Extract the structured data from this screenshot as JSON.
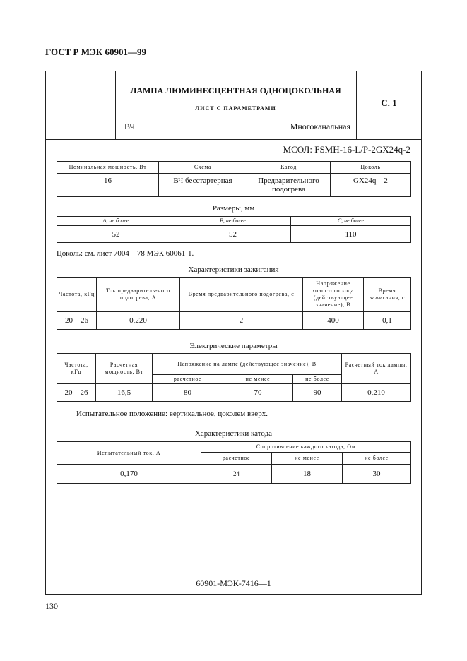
{
  "running_header": "ГОСТ Р МЭК 60901—99",
  "title_block": {
    "title": "ЛАМПА ЛЮМИНЕСЦЕНТНАЯ ОДНОЦОКОЛЬНАЯ",
    "subtitle": "ЛИСТ С ПАРАМЕТРАМИ",
    "left_label": "ВЧ",
    "right_label": "Многоканальная",
    "sheet": "С. 1"
  },
  "designation": "МСОЛ: FSMH-16-L/P-2GX24q-2",
  "general": {
    "headers": [
      "Номинальная мощность, Вт",
      "Схема",
      "Катод",
      "Цоколь"
    ],
    "row": [
      "16",
      "ВЧ бесстартерная",
      "Предварительного подогрева",
      "GX24q—2"
    ]
  },
  "dimensions": {
    "caption": "Размеры, мм",
    "headers": [
      "A, не более",
      "B, не более",
      "C, не более"
    ],
    "row": [
      "52",
      "52",
      "110"
    ]
  },
  "base_note": "Цоколь: см. лист 7004—78 МЭК 60061-1.",
  "ignition": {
    "caption": "Характеристики зажигания",
    "headers": [
      "Частота, кГц",
      "Ток предваритель-ного подогрева, А",
      "Время предварительного подогрева, с",
      "Напряжение холостого хода (действующее значение), В",
      "Время зажигания, с"
    ],
    "row": [
      "20—26",
      "0,220",
      "2",
      "400",
      "0,1"
    ]
  },
  "electrical": {
    "caption": "Электрические параметры",
    "headers": [
      "Частота, кГц",
      "Расчетная мощность, Вт",
      "Напряжение на лампе (действующее значение), В",
      "Расчетный ток лампы, А"
    ],
    "subheaders": [
      "расчетное",
      "не менее",
      "не более"
    ],
    "row": [
      "20—26",
      "16,5",
      "80",
      "70",
      "90",
      "0,210"
    ]
  },
  "test_position": "Испытательное положение: вертикальное, цоколем вверх.",
  "cathode": {
    "caption": "Характеристики катода",
    "headers": [
      "Испытательный ток, А",
      "Сопротивление каждого катода, Ом"
    ],
    "subheaders": [
      "расчетное",
      "не менее",
      "не более"
    ],
    "row": [
      "0,170",
      "24",
      "18",
      "30"
    ]
  },
  "footer": "60901-МЭК-7416—1",
  "page_number": "130"
}
